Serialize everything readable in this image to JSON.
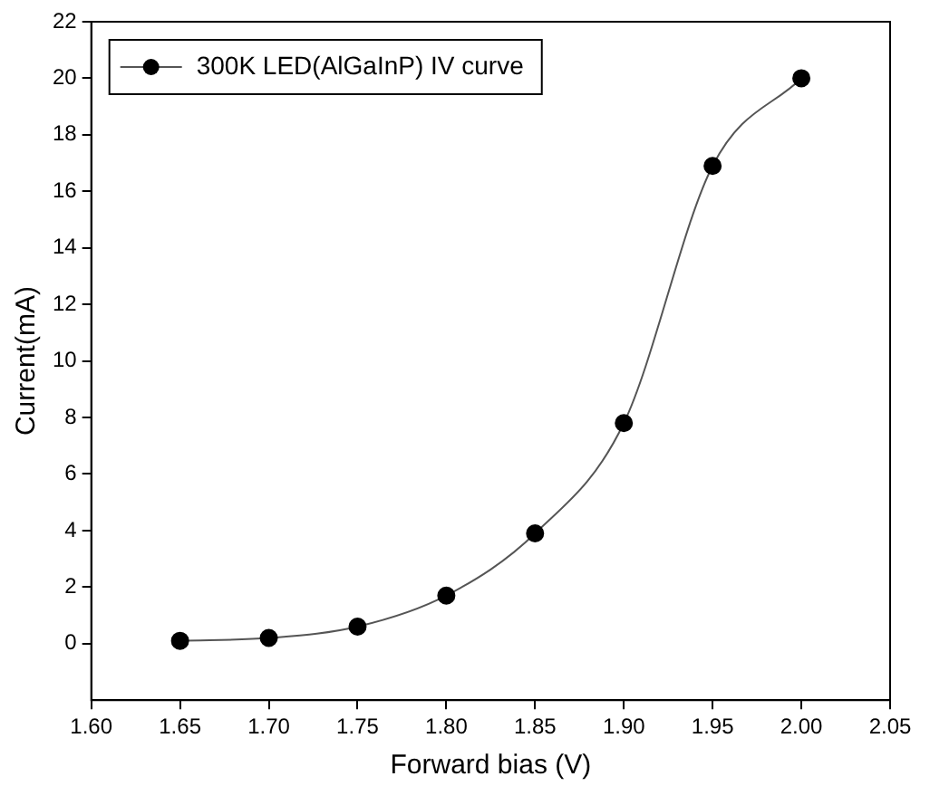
{
  "chart_data": {
    "type": "line",
    "xlabel": "Forward bias (V)",
    "ylabel": "Current(mA)",
    "x": [
      1.65,
      1.7,
      1.75,
      1.8,
      1.85,
      1.9,
      1.95,
      2.0
    ],
    "series": [
      {
        "name": "300K LED(AlGaInP) IV curve",
        "color": "#000000",
        "values": [
          0.1,
          0.2,
          0.6,
          1.7,
          3.9,
          7.8,
          16.9,
          20.0
        ]
      }
    ],
    "xlim": [
      1.6,
      2.05
    ],
    "xticks": [
      {
        "value": 1.6,
        "label": "1.60"
      },
      {
        "value": 1.65,
        "label": "1.65"
      },
      {
        "value": 1.7,
        "label": "1.70"
      },
      {
        "value": 1.75,
        "label": "1.75"
      },
      {
        "value": 1.8,
        "label": "1.80"
      },
      {
        "value": 1.85,
        "label": "1.85"
      },
      {
        "value": 1.9,
        "label": "1.90"
      },
      {
        "value": 1.95,
        "label": "1.95"
      },
      {
        "value": 2.0,
        "label": "2.00"
      },
      {
        "value": 2.05,
        "label": "2.05"
      }
    ],
    "ylim": [
      -2,
      22
    ],
    "yticks": [
      0,
      2,
      4,
      6,
      8,
      10,
      12,
      14,
      16,
      18,
      20,
      22
    ],
    "grid": false,
    "legend": "top left",
    "marker": "circle",
    "line_style": "solid"
  }
}
